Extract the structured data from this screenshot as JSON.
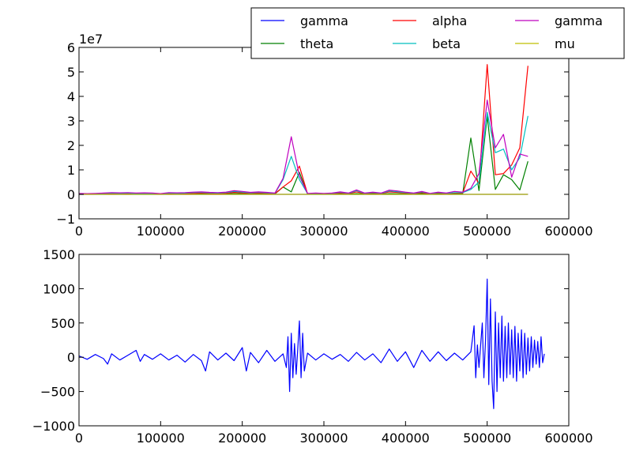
{
  "chart_data": [
    {
      "type": "line",
      "title": "",
      "xlabel": "",
      "ylabel": "",
      "offset_label": "1e7",
      "xlim": [
        0,
        600000
      ],
      "ylim": [
        -10000000,
        60000000
      ],
      "x_ticks": [
        0,
        100000,
        200000,
        300000,
        400000,
        500000,
        600000
      ],
      "x_tick_labels": [
        "0",
        "100000",
        "200000",
        "300000",
        "400000",
        "500000",
        "600000"
      ],
      "y_ticks": [
        -10000000,
        0,
        10000000,
        20000000,
        30000000,
        40000000,
        50000000,
        60000000
      ],
      "y_tick_labels": [
        "−1",
        "0",
        "1",
        "2",
        "3",
        "4",
        "5",
        "6"
      ],
      "grid": false,
      "legend_position": "top-right (outside, above axes)",
      "x": [
        0,
        10000,
        20000,
        30000,
        40000,
        50000,
        60000,
        70000,
        80000,
        90000,
        100000,
        110000,
        120000,
        130000,
        140000,
        150000,
        160000,
        170000,
        180000,
        190000,
        200000,
        210000,
        220000,
        230000,
        240000,
        250000,
        260000,
        270000,
        280000,
        290000,
        300000,
        310000,
        320000,
        330000,
        340000,
        350000,
        360000,
        370000,
        380000,
        390000,
        400000,
        410000,
        420000,
        430000,
        440000,
        450000,
        460000,
        470000,
        480000,
        490000,
        500000,
        510000,
        520000,
        530000,
        540000,
        550000
      ],
      "series": [
        {
          "name": "gamma",
          "color": "#0000ff",
          "values": [
            0,
            0,
            0,
            0,
            0,
            0,
            0,
            0,
            0,
            0,
            0,
            0,
            0,
            0,
            0,
            0,
            0,
            0,
            0,
            0,
            0,
            0,
            0,
            0,
            0,
            0,
            0,
            0,
            0,
            0,
            0,
            0,
            0,
            0,
            0,
            0,
            0,
            0,
            0,
            0,
            0,
            0,
            0,
            0,
            0,
            0,
            0,
            0,
            0,
            0,
            0,
            0,
            0,
            0,
            0,
            0
          ]
        },
        {
          "name": "theta",
          "color": "#008000",
          "values": [
            200000,
            100000,
            150000,
            200000,
            150000,
            180000,
            220000,
            150000,
            200000,
            180000,
            150000,
            250000,
            180000,
            200000,
            220000,
            250000,
            200000,
            180000,
            220000,
            300000,
            250000,
            200000,
            220000,
            200000,
            150000,
            3000000,
            1000000,
            9000000,
            100000,
            150000,
            100000,
            150000,
            200000,
            100000,
            300000,
            150000,
            200000,
            100000,
            300000,
            250000,
            200000,
            150000,
            300000,
            100000,
            200000,
            150000,
            200000,
            300000,
            23000000,
            1500000,
            32000000,
            2000000,
            8000000,
            6000000,
            1800000,
            13500000
          ]
        },
        {
          "name": "alpha",
          "color": "#ff0000",
          "values": [
            200000,
            150000,
            200000,
            250000,
            300000,
            250000,
            300000,
            200000,
            250000,
            200000,
            150000,
            300000,
            250000,
            300000,
            400000,
            500000,
            400000,
            300000,
            450000,
            800000,
            600000,
            400000,
            500000,
            400000,
            300000,
            3000000,
            5500000,
            11500000,
            200000,
            300000,
            200000,
            300000,
            500000,
            300000,
            1000000,
            300000,
            500000,
            300000,
            1000000,
            800000,
            500000,
            300000,
            700000,
            200000,
            500000,
            300000,
            500000,
            500000,
            9500000,
            4500000,
            53000000,
            8000000,
            8500000,
            12000000,
            19000000,
            52500000
          ]
        },
        {
          "name": "beta",
          "color": "#00bfbf",
          "values": [
            300000,
            200000,
            300000,
            400000,
            500000,
            400000,
            500000,
            300000,
            400000,
            300000,
            200000,
            500000,
            400000,
            500000,
            700000,
            800000,
            600000,
            500000,
            700000,
            1200000,
            900000,
            600000,
            800000,
            600000,
            400000,
            6000000,
            15500000,
            6000000,
            300000,
            400000,
            300000,
            400000,
            800000,
            400000,
            1500000,
            400000,
            700000,
            400000,
            1400000,
            1100000,
            700000,
            400000,
            1000000,
            300000,
            700000,
            400000,
            700000,
            700000,
            2000000,
            5000000,
            33500000,
            17000000,
            18500000,
            10000000,
            15000000,
            32000000
          ]
        },
        {
          "name": "gamma",
          "color": "#bf00bf",
          "values": [
            400000,
            300000,
            400000,
            500000,
            700000,
            600000,
            700000,
            500000,
            600000,
            500000,
            300000,
            700000,
            600000,
            700000,
            900000,
            1000000,
            800000,
            700000,
            900000,
            1500000,
            1200000,
            800000,
            1000000,
            800000,
            500000,
            6500000,
            23500000,
            7500000,
            400000,
            500000,
            400000,
            500000,
            1000000,
            500000,
            1800000,
            500000,
            900000,
            500000,
            1700000,
            1400000,
            900000,
            500000,
            1200000,
            400000,
            900000,
            500000,
            1200000,
            900000,
            2500000,
            8500000,
            38500000,
            19000000,
            24500000,
            7000000,
            16500000,
            15500000
          ]
        },
        {
          "name": "mu",
          "color": "#bfbf00",
          "values": [
            0,
            0,
            0,
            0,
            0,
            0,
            0,
            0,
            0,
            0,
            0,
            0,
            0,
            0,
            0,
            0,
            0,
            0,
            0,
            0,
            0,
            0,
            0,
            0,
            0,
            0,
            0,
            0,
            0,
            0,
            0,
            0,
            0,
            0,
            0,
            0,
            0,
            0,
            0,
            0,
            0,
            0,
            0,
            0,
            0,
            0,
            0,
            0,
            0,
            0,
            0,
            0,
            0,
            0,
            0,
            0
          ]
        }
      ]
    },
    {
      "type": "line",
      "title": "",
      "xlabel": "",
      "ylabel": "",
      "xlim": [
        0,
        600000
      ],
      "ylim": [
        -1000,
        1500
      ],
      "x_ticks": [
        0,
        100000,
        200000,
        300000,
        400000,
        500000,
        600000
      ],
      "x_tick_labels": [
        "0",
        "100000",
        "200000",
        "300000",
        "400000",
        "500000",
        "600000"
      ],
      "y_ticks": [
        -1000,
        -500,
        0,
        500,
        1000,
        1500
      ],
      "y_tick_labels": [
        "−1000",
        "−500",
        "0",
        "500",
        "1000",
        "1500"
      ],
      "grid": false,
      "series": [
        {
          "color": "#0000ff",
          "x": [
            0,
            10000,
            20000,
            30000,
            35000,
            40000,
            50000,
            60000,
            70000,
            75000,
            80000,
            90000,
            100000,
            110000,
            120000,
            130000,
            140000,
            150000,
            155000,
            160000,
            170000,
            180000,
            190000,
            200000,
            205000,
            210000,
            220000,
            230000,
            240000,
            250000,
            254000,
            256000,
            258000,
            260000,
            262000,
            264000,
            266000,
            268000,
            270000,
            272000,
            274000,
            276000,
            280000,
            290000,
            300000,
            310000,
            320000,
            330000,
            340000,
            350000,
            360000,
            370000,
            380000,
            390000,
            400000,
            410000,
            420000,
            430000,
            440000,
            450000,
            460000,
            470000,
            480000,
            484000,
            486000,
            488000,
            490000,
            494000,
            496000,
            498000,
            500000,
            502000,
            504000,
            506000,
            508000,
            510000,
            512000,
            514000,
            516000,
            518000,
            520000,
            522000,
            524000,
            526000,
            528000,
            530000,
            532000,
            534000,
            536000,
            538000,
            540000,
            542000,
            544000,
            546000,
            548000,
            550000,
            552000,
            554000,
            556000,
            558000,
            560000,
            562000,
            564000,
            566000,
            568000,
            570000
          ],
          "values": [
            20,
            -30,
            40,
            -20,
            -100,
            50,
            -40,
            30,
            100,
            -60,
            40,
            -30,
            50,
            -40,
            30,
            -70,
            40,
            -50,
            -200,
            80,
            -40,
            60,
            -50,
            140,
            -200,
            70,
            -80,
            100,
            -60,
            50,
            -150,
            300,
            -500,
            350,
            -300,
            200,
            -250,
            120,
            530,
            -300,
            350,
            -200,
            60,
            -40,
            50,
            -30,
            40,
            -60,
            70,
            -40,
            50,
            -80,
            120,
            -60,
            80,
            -150,
            100,
            -60,
            80,
            -50,
            60,
            -40,
            80,
            460,
            -300,
            180,
            -150,
            500,
            -300,
            250,
            1140,
            -400,
            850,
            -350,
            -750,
            660,
            -500,
            500,
            -300,
            600,
            -350,
            450,
            -300,
            500,
            -250,
            400,
            -300,
            450,
            -350,
            350,
            -200,
            400,
            -300,
            350,
            -250,
            280,
            -200,
            300,
            -150,
            250,
            -100,
            230,
            -150,
            300,
            -80,
            50
          ]
        }
      ]
    }
  ],
  "legend": {
    "entries": [
      {
        "name": "gamma",
        "color": "#0000ff"
      },
      {
        "name": "theta",
        "color": "#008000"
      },
      {
        "name": "alpha",
        "color": "#ff0000"
      },
      {
        "name": "beta",
        "color": "#00bfbf"
      },
      {
        "name": "gamma",
        "color": "#bf00bf"
      },
      {
        "name": "mu",
        "color": "#bfbf00"
      }
    ]
  }
}
